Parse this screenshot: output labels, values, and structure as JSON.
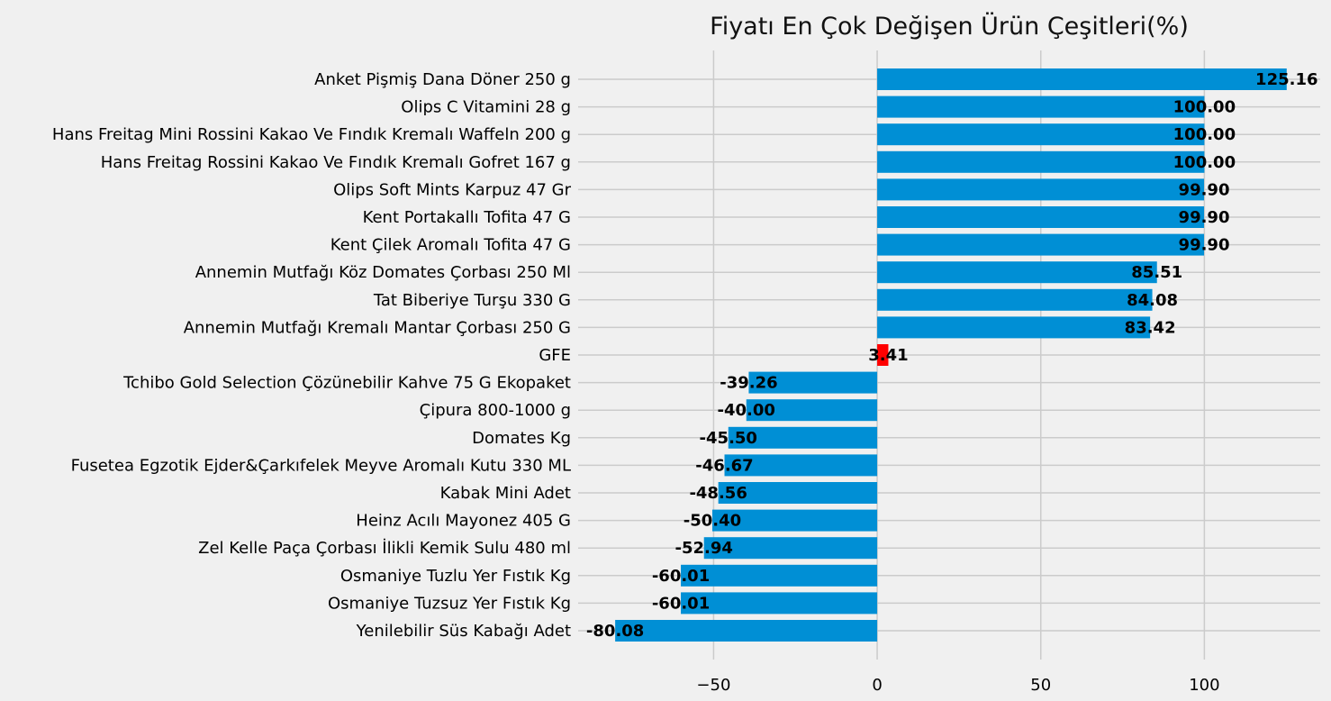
{
  "chart_data": {
    "type": "bar",
    "orientation": "horizontal",
    "title": "Fiyatı En Çok Değişen Ürün Çeşitleri(%)",
    "xlabel": "",
    "ylabel": "",
    "xlim": [
      -91.4,
      135.4
    ],
    "xticks": [
      -50,
      0,
      50,
      100
    ],
    "xtick_labels": [
      "−50",
      "0",
      "50",
      "100"
    ],
    "grid": true,
    "categories": [
      "Anket Pişmiş Dana Döner 250 g",
      "Olips C Vitamini 28 g",
      "Hans Freitag Mini Rossini Kakao Ve Fındık Kremalı Waffeln 200 g",
      "Hans Freitag Rossini Kakao Ve Fındık Kremalı Gofret 167 g",
      "Olips Soft Mints Karpuz 47 Gr",
      "Kent Portakallı Tofita 47 G",
      "Kent Çilek Aromalı Tofita 47 G",
      "Annemin Mutfağı Köz Domates Çorbası 250 Ml",
      "Tat Biberiye Turşu 330 G",
      "Annemin Mutfağı Kremalı Mantar Çorbası 250 G",
      "GFE",
      "Tchibo Gold Selection Çözünebilir Kahve 75 G Ekopaket",
      "Çipura 800-1000 g",
      "Domates Kg",
      "Fusetea Egzotik Ejder&Çarkıfelek Meyve Aromalı Kutu 330 ML",
      "Kabak Mini Adet",
      "Heinz Acılı Mayonez 405 G",
      "Zel Kelle Paça Çorbası İlikli Kemik Sulu 480 ml",
      "Osmaniye Tuzlu Yer Fıstık Kg",
      "Osmaniye Tuzsuz Yer Fıstık Kg",
      "Yenilebilir Süs Kabağı Adet"
    ],
    "values": [
      125.16,
      100.0,
      100.0,
      100.0,
      99.9,
      99.9,
      99.9,
      85.51,
      84.08,
      83.42,
      3.41,
      -39.26,
      -40.0,
      -45.5,
      -46.67,
      -48.56,
      -50.4,
      -52.94,
      -60.01,
      -60.01,
      -80.08
    ],
    "value_labels": [
      "125.16",
      "100.00",
      "100.00",
      "100.00",
      "99.90",
      "99.90",
      "99.90",
      "85.51",
      "84.08",
      "83.42",
      "3.41",
      "-39.26",
      "-40.00",
      "-45.50",
      "-46.67",
      "-48.56",
      "-50.40",
      "-52.94",
      "-60.01",
      "-60.01",
      "-80.08"
    ],
    "highlight_category": "GFE",
    "colors": {
      "bar": "#008fd5",
      "highlight": "#ff0000",
      "grid": "#cbcbcb",
      "background": "#f0f0f0"
    }
  }
}
